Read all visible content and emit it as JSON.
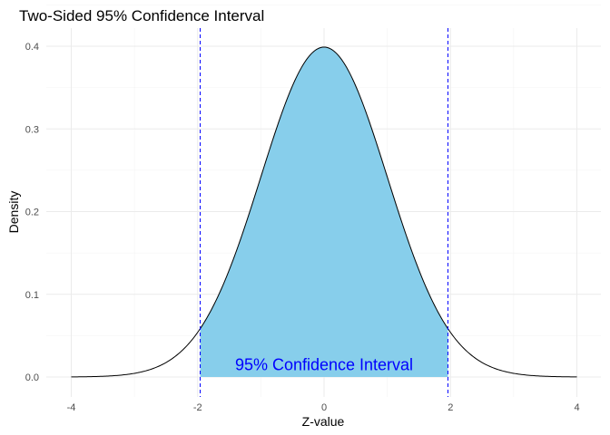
{
  "chart_data": {
    "type": "area",
    "title": "Two-Sided 95% Confidence Interval",
    "xlabel": "Z-value",
    "ylabel": "Density",
    "xlim": [
      -4,
      4
    ],
    "ylim": [
      0,
      0.4
    ],
    "x_ticks": [
      -4,
      -2,
      0,
      2,
      4
    ],
    "y_ticks": [
      0.0,
      0.1,
      0.2,
      0.3,
      0.4
    ],
    "x_tick_labels": [
      "-4",
      "-2",
      "0",
      "2",
      "4"
    ],
    "y_tick_labels": [
      "0.0",
      "0.1",
      "0.2",
      "0.3",
      "0.4"
    ],
    "grid": true,
    "series": [
      {
        "x": [
          -4.0,
          -3.5,
          -3.0,
          -2.5,
          -2.0,
          -1.96,
          -1.5,
          -1.0,
          -0.5,
          0.0,
          0.5,
          1.0,
          1.5,
          1.96,
          2.0,
          2.5,
          3.0,
          3.5,
          4.0
        ],
        "values": [
          0.0001,
          0.0009,
          0.0044,
          0.0175,
          0.054,
          0.0584,
          0.1295,
          0.242,
          0.3521,
          0.3989,
          0.3521,
          0.242,
          0.1295,
          0.0584,
          0.054,
          0.0175,
          0.0044,
          0.0009,
          0.0001
        ]
      }
    ],
    "shaded_region": {
      "from": -1.96,
      "to": 1.96
    },
    "critical_lines": [
      -1.96,
      1.96
    ],
    "annotation": {
      "text": "95% Confidence Interval",
      "x": 0,
      "y": 0.015
    },
    "colors": {
      "fill": "#87ceeb",
      "curve": "#000000",
      "critical_line": "#0000ff",
      "annotation": "#0000ff"
    }
  }
}
